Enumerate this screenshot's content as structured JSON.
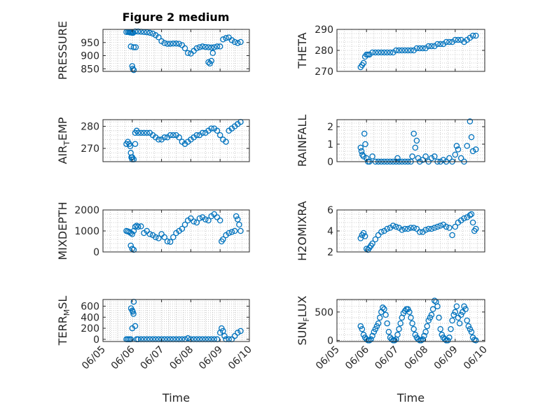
{
  "figure": {
    "title": "Figure 2 medium"
  },
  "colors": {
    "marker": "#0072BD",
    "axis": "#262626",
    "grid": "#bdbdbd"
  },
  "chart_data": [
    {
      "id": "pressure",
      "type": "scatter",
      "title": "Figure 2 medium",
      "ylabel": {
        "main": "PRESSURE"
      },
      "xlabel": "",
      "xlim": [
        "06/05",
        "06/10"
      ],
      "ylim": [
        840,
        1000
      ],
      "yticks": [
        850,
        900,
        950
      ],
      "xticks": [
        "06/05",
        "06/06",
        "06/07",
        "06/08",
        "06/09",
        "06/10"
      ],
      "grid": true,
      "series": [
        {
          "x": [
            5.8,
            5.86,
            5.9,
            5.93,
            5.97,
            6.0,
            6.03,
            6.1,
            6.2,
            6.3,
            6.4,
            6.5,
            6.6,
            6.7,
            6.8,
            6.9,
            7.0,
            7.1,
            7.2,
            7.3,
            7.4,
            7.5,
            7.6,
            7.7,
            7.8,
            7.9,
            8.0,
            8.1,
            8.2,
            8.3,
            8.4,
            8.5,
            8.6,
            8.7,
            8.8,
            8.9,
            9.0,
            9.1,
            9.2,
            9.3,
            9.4,
            9.5,
            9.6,
            9.7,
            5.95,
            6.05,
            6.12,
            6.0,
            6.02,
            6.05,
            8.6,
            8.65,
            8.7,
            8.75
          ],
          "y": [
            990,
            990,
            989,
            988,
            988,
            987,
            987,
            992,
            992,
            991,
            990,
            989,
            987,
            984,
            978,
            970,
            955,
            948,
            945,
            945,
            946,
            946,
            945,
            940,
            928,
            910,
            908,
            918,
            928,
            932,
            935,
            933,
            932,
            931,
            932,
            935,
            935,
            962,
            967,
            969,
            959,
            952,
            948,
            952,
            935,
            932,
            932,
            860,
            850,
            845,
            875,
            870,
            880,
            910
          ]
        }
      ]
    },
    {
      "id": "theta",
      "type": "scatter",
      "ylabel": {
        "main": "THETA"
      },
      "xlabel": "",
      "xlim": [
        "06/05",
        "06/10"
      ],
      "ylim": [
        270,
        290
      ],
      "yticks": [
        270,
        280,
        290
      ],
      "xticks": [
        "06/05",
        "06/06",
        "06/07",
        "06/08",
        "06/09",
        "06/10"
      ],
      "grid": true,
      "series": [
        {
          "x": [
            5.8,
            5.85,
            5.9,
            5.95,
            6.0,
            6.05,
            6.1,
            6.2,
            6.3,
            6.4,
            6.5,
            6.6,
            6.7,
            6.8,
            6.9,
            7.0,
            7.1,
            7.2,
            7.3,
            7.4,
            7.5,
            7.6,
            7.7,
            7.8,
            7.9,
            8.0,
            8.1,
            8.2,
            8.3,
            8.4,
            8.5,
            8.6,
            8.7,
            8.8,
            8.9,
            9.0,
            9.1,
            9.2,
            9.3,
            9.4,
            9.5,
            9.6,
            9.7
          ],
          "y": [
            272,
            273,
            274,
            277,
            278,
            278,
            278,
            279,
            279,
            279,
            279,
            279,
            279,
            279,
            279,
            280,
            280,
            280,
            280,
            280,
            280,
            280,
            281,
            281,
            281,
            281,
            282,
            282,
            282,
            283,
            283,
            283,
            284,
            284,
            284,
            285,
            285,
            285,
            284,
            285,
            286,
            287,
            287
          ]
        }
      ]
    },
    {
      "id": "air_temp",
      "type": "scatter",
      "ylabel": {
        "main": "AIR",
        "sub": "T",
        "rest": "EMP"
      },
      "xlabel": "",
      "xlim": [
        "06/05",
        "06/10"
      ],
      "ylim": [
        264,
        283
      ],
      "yticks": [
        270,
        280
      ],
      "xticks": [
        "06/05",
        "06/06",
        "06/07",
        "06/08",
        "06/09",
        "06/10"
      ],
      "grid": true,
      "series": [
        {
          "x": [
            5.8,
            5.85,
            5.9,
            5.93,
            5.97,
            6.0,
            6.05,
            6.1,
            6.15,
            6.2,
            6.3,
            6.4,
            6.5,
            6.6,
            6.7,
            6.8,
            6.9,
            7.0,
            7.1,
            7.2,
            7.3,
            7.4,
            7.5,
            7.6,
            7.7,
            7.8,
            7.9,
            8.0,
            8.1,
            8.2,
            8.3,
            8.4,
            8.5,
            8.6,
            8.7,
            8.8,
            8.9,
            9.0,
            9.1,
            9.2,
            9.3,
            9.4,
            9.5,
            9.6,
            9.7,
            5.95,
            6.0,
            6.1
          ],
          "y": [
            272,
            273,
            272,
            271,
            266,
            265,
            265,
            277,
            278,
            277,
            277,
            277,
            277,
            277,
            276,
            275,
            274,
            274,
            275,
            275,
            276,
            276,
            276,
            275,
            273,
            272,
            273,
            274,
            275,
            276,
            276,
            277,
            277,
            278,
            279,
            279,
            278,
            276,
            274,
            273,
            278,
            279,
            280,
            281,
            282,
            268,
            266,
            272
          ]
        }
      ]
    },
    {
      "id": "rainfall",
      "type": "scatter",
      "ylabel": {
        "main": "RAINFALL"
      },
      "xlabel": "",
      "xlim": [
        "06/05",
        "06/10"
      ],
      "ylim": [
        0,
        2.4
      ],
      "yticks": [
        0,
        1,
        2
      ],
      "xticks": [
        "06/05",
        "06/06",
        "06/07",
        "06/08",
        "06/09",
        "06/10"
      ],
      "grid": true,
      "series": [
        {
          "x": [
            5.8,
            5.83,
            5.86,
            5.9,
            5.93,
            5.96,
            6.0,
            6.05,
            6.1,
            6.2,
            6.3,
            6.4,
            6.5,
            6.6,
            6.7,
            6.8,
            6.9,
            7.0,
            7.05,
            7.1,
            7.2,
            7.3,
            7.4,
            7.5,
            7.55,
            7.6,
            7.65,
            7.7,
            7.75,
            7.8,
            7.9,
            8.0,
            8.1,
            8.2,
            8.3,
            8.4,
            8.5,
            8.6,
            8.7,
            8.8,
            8.9,
            9.0,
            9.05,
            9.1,
            9.2,
            9.3,
            9.4,
            9.5,
            9.55,
            9.6,
            9.7
          ],
          "y": [
            0.8,
            0.6,
            0.4,
            0.3,
            1.6,
            1.0,
            0.2,
            0.0,
            0.0,
            0.3,
            0.0,
            0.0,
            0.0,
            0.0,
            0.0,
            0.0,
            0.0,
            0.0,
            0.2,
            0.0,
            0.0,
            0.0,
            0.0,
            0.0,
            0.3,
            1.6,
            0.8,
            1.2,
            0.2,
            0.0,
            0.1,
            0.3,
            0.0,
            0.2,
            0.3,
            0.0,
            0.0,
            0.1,
            0.0,
            0.2,
            0.0,
            0.4,
            0.9,
            0.7,
            0.2,
            0.0,
            0.9,
            2.3,
            1.4,
            0.6,
            0.7
          ]
        }
      ]
    },
    {
      "id": "mixdepth",
      "type": "scatter",
      "ylabel": {
        "main": "MIXDEPTH"
      },
      "xlabel": "",
      "xlim": [
        "06/05",
        "06/10"
      ],
      "ylim": [
        0,
        2000
      ],
      "yticks": [
        0,
        1000,
        2000
      ],
      "xticks": [
        "06/05",
        "06/06",
        "06/07",
        "06/08",
        "06/09",
        "06/10"
      ],
      "grid": true,
      "series": [
        {
          "x": [
            5.8,
            5.85,
            5.9,
            5.95,
            6.0,
            6.05,
            6.1,
            6.15,
            6.2,
            6.3,
            6.4,
            6.5,
            6.6,
            6.7,
            6.8,
            6.9,
            7.0,
            7.1,
            7.2,
            7.3,
            7.4,
            7.5,
            7.6,
            7.7,
            7.8,
            7.9,
            8.0,
            8.1,
            8.2,
            8.3,
            8.4,
            8.5,
            8.6,
            8.7,
            8.8,
            8.9,
            9.0,
            9.05,
            9.1,
            9.2,
            9.3,
            9.4,
            9.5,
            9.55,
            9.6,
            9.65,
            9.7,
            5.95,
            6.0,
            6.05
          ],
          "y": [
            1000,
            980,
            950,
            900,
            850,
            1000,
            1200,
            1250,
            1200,
            1220,
            900,
            1000,
            850,
            800,
            700,
            650,
            850,
            700,
            500,
            480,
            700,
            900,
            1000,
            1100,
            1300,
            1500,
            1600,
            1450,
            1400,
            1600,
            1650,
            1550,
            1500,
            1700,
            1800,
            1650,
            1500,
            500,
            600,
            800,
            900,
            950,
            1000,
            1700,
            1550,
            1300,
            1000,
            300,
            150,
            100
          ]
        }
      ]
    },
    {
      "id": "h2omixra",
      "type": "scatter",
      "ylabel": {
        "main": "H2OMIXRA"
      },
      "xlabel": "",
      "xlim": [
        "06/05",
        "06/10"
      ],
      "ylim": [
        2,
        6
      ],
      "yticks": [
        2,
        4,
        6
      ],
      "xticks": [
        "06/05",
        "06/06",
        "06/07",
        "06/08",
        "06/09",
        "06/10"
      ],
      "grid": true,
      "series": [
        {
          "x": [
            5.8,
            5.85,
            5.9,
            5.95,
            6.0,
            6.05,
            6.1,
            6.15,
            6.2,
            6.3,
            6.4,
            6.5,
            6.6,
            6.7,
            6.8,
            6.9,
            7.0,
            7.1,
            7.2,
            7.3,
            7.4,
            7.5,
            7.6,
            7.7,
            7.8,
            7.9,
            8.0,
            8.1,
            8.2,
            8.3,
            8.4,
            8.5,
            8.6,
            8.7,
            8.8,
            8.9,
            9.0,
            9.1,
            9.2,
            9.3,
            9.4,
            9.5,
            9.55,
            9.6,
            9.65,
            9.7
          ],
          "y": [
            3.3,
            3.6,
            3.8,
            3.5,
            2.3,
            2.2,
            2.4,
            2.6,
            2.8,
            3.2,
            3.6,
            3.9,
            4.0,
            4.2,
            4.3,
            4.5,
            4.4,
            4.3,
            4.1,
            4.2,
            4.2,
            4.3,
            4.3,
            4.2,
            3.9,
            3.9,
            4.1,
            4.2,
            4.2,
            4.3,
            4.4,
            4.5,
            4.6,
            4.4,
            4.3,
            3.6,
            4.4,
            4.8,
            5.0,
            5.2,
            5.3,
            5.5,
            5.6,
            4.8,
            4.0,
            4.2
          ]
        }
      ]
    },
    {
      "id": "terr_msl",
      "type": "scatter",
      "ylabel": {
        "main": "TERR",
        "sub": "M",
        "rest": "SL"
      },
      "xlabel": "Time",
      "xlim": [
        "06/05",
        "06/10"
      ],
      "ylim": [
        -40,
        720
      ],
      "yticks": [
        0,
        200,
        400,
        600
      ],
      "xticks": [
        "06/05",
        "06/06",
        "06/07",
        "06/08",
        "06/09",
        "06/10"
      ],
      "grid": true,
      "series": [
        {
          "x": [
            5.8,
            5.85,
            5.9,
            5.95,
            6.0,
            6.02,
            6.05,
            6.1,
            6.15,
            6.2,
            6.3,
            6.4,
            6.5,
            6.6,
            6.7,
            6.8,
            6.9,
            7.0,
            7.1,
            7.2,
            7.3,
            7.4,
            7.5,
            7.6,
            7.7,
            7.8,
            7.9,
            8.0,
            8.1,
            8.2,
            8.3,
            8.4,
            8.5,
            8.6,
            8.7,
            8.8,
            8.9,
            9.0,
            9.05,
            9.1,
            9.15,
            9.2,
            9.3,
            9.4,
            9.5,
            9.6,
            9.7,
            5.96,
            6.0,
            6.04
          ],
          "y": [
            0,
            0,
            0,
            0,
            200,
            500,
            680,
            240,
            0,
            0,
            0,
            0,
            0,
            0,
            0,
            0,
            0,
            0,
            0,
            0,
            0,
            0,
            0,
            0,
            0,
            0,
            20,
            0,
            0,
            0,
            0,
            0,
            0,
            0,
            0,
            0,
            0,
            120,
            200,
            150,
            60,
            0,
            0,
            0,
            60,
            120,
            150,
            560,
            520,
            460
          ]
        }
      ]
    },
    {
      "id": "sun_flux",
      "type": "scatter",
      "ylabel": {
        "main": "SUN",
        "sub": "F",
        "rest": "LUX"
      },
      "xlabel": "Time",
      "xlim": [
        "06/05",
        "06/10"
      ],
      "ylim": [
        -20,
        720
      ],
      "yticks": [
        0,
        500
      ],
      "xticks": [
        "06/05",
        "06/06",
        "06/07",
        "06/08",
        "06/09",
        "06/10"
      ],
      "grid": true,
      "series": [
        {
          "x": [
            5.8,
            5.85,
            5.9,
            5.95,
            6.0,
            6.05,
            6.1,
            6.15,
            6.2,
            6.25,
            6.3,
            6.35,
            6.4,
            6.45,
            6.5,
            6.55,
            6.6,
            6.65,
            6.7,
            6.75,
            6.8,
            6.85,
            6.9,
            6.95,
            7.0,
            7.05,
            7.1,
            7.15,
            7.2,
            7.25,
            7.3,
            7.35,
            7.4,
            7.45,
            7.5,
            7.55,
            7.6,
            7.65,
            7.7,
            7.75,
            7.8,
            7.85,
            7.9,
            7.95,
            8.0,
            8.05,
            8.1,
            8.15,
            8.2,
            8.25,
            8.3,
            8.35,
            8.4,
            8.45,
            8.5,
            8.55,
            8.6,
            8.65,
            8.7,
            8.75,
            8.8,
            8.85,
            8.9,
            8.95,
            9.0,
            9.05,
            9.1,
            9.15,
            9.2,
            9.25,
            9.3,
            9.35,
            9.4,
            9.45,
            9.5,
            9.55,
            9.6,
            9.65,
            9.7
          ],
          "y": [
            250,
            200,
            100,
            50,
            20,
            0,
            0,
            20,
            80,
            150,
            200,
            250,
            300,
            400,
            500,
            580,
            550,
            450,
            300,
            150,
            50,
            20,
            0,
            0,
            20,
            100,
            200,
            300,
            400,
            480,
            520,
            550,
            550,
            500,
            400,
            300,
            200,
            100,
            50,
            20,
            0,
            0,
            20,
            80,
            150,
            250,
            350,
            400,
            450,
            550,
            700,
            680,
            600,
            400,
            200,
            100,
            50,
            20,
            0,
            0,
            50,
            200,
            350,
            450,
            500,
            600,
            400,
            300,
            450,
            500,
            600,
            550,
            350,
            250,
            200,
            150,
            50,
            10,
            0
          ]
        }
      ]
    }
  ]
}
